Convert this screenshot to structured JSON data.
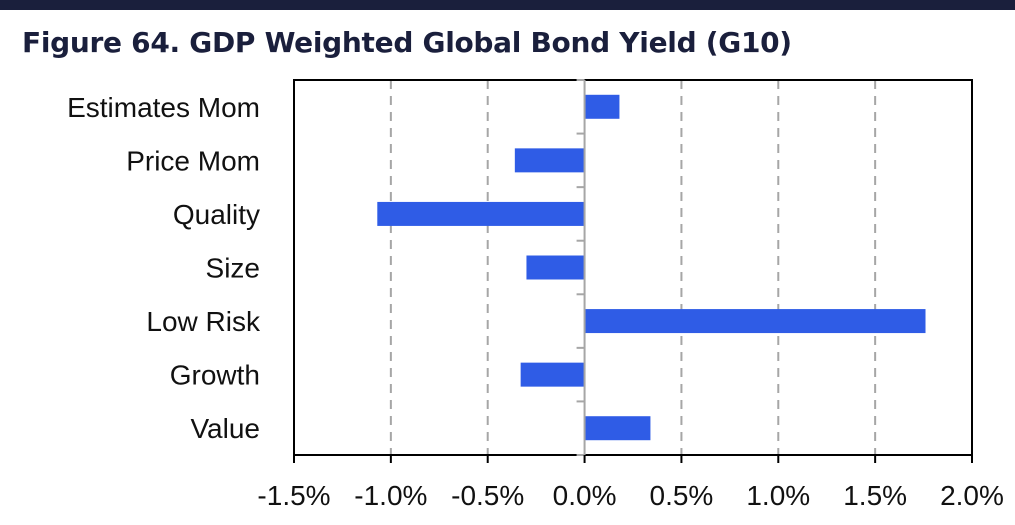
{
  "title": "Figure 64. GDP Weighted Global Bond Yield (G10)",
  "colors": {
    "bar": "#2f5ce6",
    "header_rule": "#1a1f3c",
    "grid": "#a6a6a6",
    "axis": "#000000"
  },
  "chart_data": {
    "type": "bar",
    "orientation": "horizontal",
    "title": "Figure 64. GDP Weighted Global Bond Yield (G10)",
    "categories": [
      "Estimates Mom",
      "Price Mom",
      "Quality",
      "Size",
      "Low Risk",
      "Growth",
      "Value"
    ],
    "values": [
      0.18,
      -0.36,
      -1.07,
      -0.3,
      1.76,
      -0.33,
      0.34
    ],
    "unit": "%",
    "xlim": [
      -1.5,
      2.0
    ],
    "xticks": [
      -1.5,
      -1.0,
      -0.5,
      0.0,
      0.5,
      1.0,
      1.5,
      2.0
    ],
    "xtick_labels": [
      "-1.5%",
      "-1.0%",
      "-0.5%",
      "0.0%",
      "0.5%",
      "1.0%",
      "1.5%",
      "2.0%"
    ],
    "grid": "vertical dashed",
    "legend": "none"
  }
}
